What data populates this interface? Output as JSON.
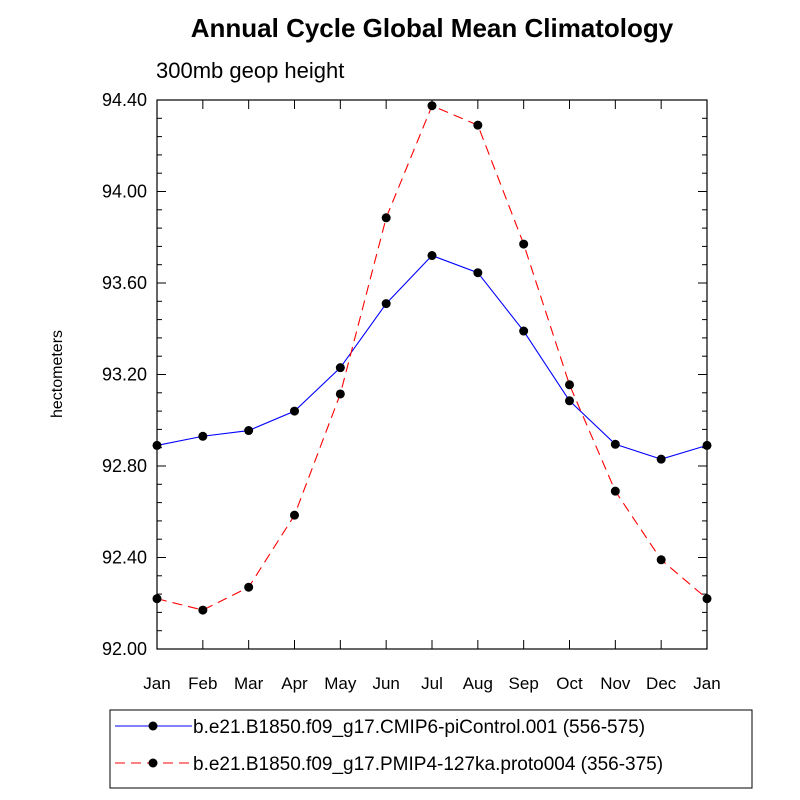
{
  "chart_data": {
    "type": "line",
    "title": "Annual Cycle Global Mean Climatology",
    "subtitle": "300mb geop height",
    "ylabel": "hectometers",
    "xlabel": "",
    "ylim": [
      92.0,
      94.4
    ],
    "yticks": [
      92.0,
      92.4,
      92.8,
      93.2,
      93.6,
      94.0,
      94.4
    ],
    "ytick_labels": [
      "92.00",
      "92.40",
      "92.80",
      "93.20",
      "93.60",
      "94.00",
      "94.40"
    ],
    "categories": [
      "Jan",
      "Feb",
      "Mar",
      "Apr",
      "May",
      "Jun",
      "Jul",
      "Aug",
      "Sep",
      "Oct",
      "Nov",
      "Dec",
      "Jan"
    ],
    "series": [
      {
        "name": "b.e21.B1850.f09_g17.CMIP6-piControl.001 (556-575)",
        "color": "#0000ff",
        "dash": "solid",
        "values": [
          92.89,
          92.93,
          92.955,
          93.04,
          93.23,
          93.51,
          93.72,
          93.645,
          93.39,
          93.085,
          92.895,
          92.83,
          92.89
        ]
      },
      {
        "name": "b.e21.B1850.f09_g17.PMIP4-127ka.proto004 (356-375)",
        "color": "#ff0000",
        "dash": "dashed",
        "values": [
          92.22,
          92.17,
          92.27,
          92.585,
          93.115,
          93.885,
          94.375,
          94.29,
          93.77,
          93.155,
          92.69,
          92.39,
          92.22
        ]
      }
    ],
    "grid": false,
    "legend_position": "bottom"
  }
}
